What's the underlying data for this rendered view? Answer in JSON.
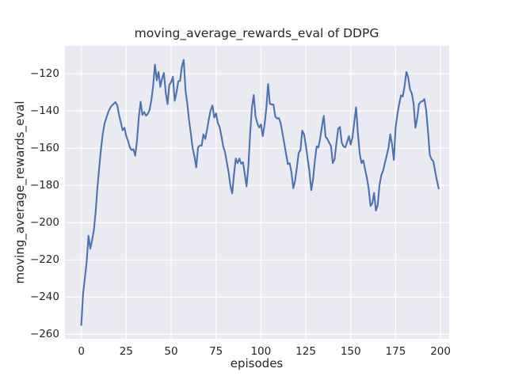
{
  "chart_data": {
    "type": "line",
    "title": "moving_average_rewards_eval of DDPG",
    "xlabel": "episodes",
    "ylabel": "moving_average_rewards_eval",
    "legend": false,
    "grid": true,
    "xlim": [
      -9.1,
      204.8
    ],
    "ylim": [
      -262.4,
      -105.0
    ],
    "x_ticks": [
      0,
      25,
      50,
      75,
      100,
      125,
      150,
      175,
      200
    ],
    "y_ticks": [
      -120,
      -140,
      -160,
      -180,
      -200,
      -220,
      -240,
      -260
    ],
    "style": {
      "fig_bg": "#ffffff",
      "axes_bg": "#eaeaf2",
      "grid_color": "#ffffff",
      "text_color": "#262626",
      "line_color": "#4c72b0",
      "line_width": 2.1
    },
    "series": [
      {
        "name": "moving_average_rewards_eval",
        "color": "#4c72b0",
        "x_start": 0,
        "x_step": 1,
        "values": [
          -255.0,
          -238.0,
          -229.5,
          -221.0,
          -207.0,
          -214.0,
          -209.5,
          -204.0,
          -194.0,
          -181.0,
          -170.0,
          -160.0,
          -152.0,
          -146.5,
          -143.5,
          -140.6,
          -138.5,
          -137.0,
          -136.2,
          -135.2,
          -136.8,
          -142.0,
          -146.0,
          -150.3,
          -149.0,
          -153.4,
          -156.0,
          -159.5,
          -161.0,
          -160.5,
          -164.0,
          -156.0,
          -143.5,
          -135.0,
          -142.0,
          -140.5,
          -142.5,
          -141.5,
          -139.5,
          -134.0,
          -126.5,
          -115.0,
          -123.5,
          -119.0,
          -127.0,
          -122.5,
          -119.5,
          -130.0,
          -136.3,
          -126.0,
          -124.5,
          -121.5,
          -134.5,
          -130.0,
          -124.0,
          -123.8,
          -116.0,
          -112.5,
          -128.5,
          -136.0,
          -145.0,
          -152.0,
          -160.0,
          -164.5,
          -170.3,
          -159.5,
          -158.5,
          -158.5,
          -152.5,
          -155.0,
          -150.0,
          -144.5,
          -139.5,
          -137.0,
          -143.5,
          -141.3,
          -146.5,
          -148.5,
          -153.5,
          -159.0,
          -162.0,
          -167.5,
          -173.0,
          -180.0,
          -184.3,
          -174.0,
          -165.5,
          -168.0,
          -165.5,
          -168.3,
          -167.5,
          -174.0,
          -180.5,
          -170.0,
          -152.0,
          -138.0,
          -131.4,
          -143.0,
          -146.5,
          -148.8,
          -147.2,
          -153.5,
          -147.5,
          -138.5,
          -125.5,
          -136.0,
          -136.5,
          -136.5,
          -143.0,
          -144.0,
          -143.8,
          -146.5,
          -152.0,
          -157.5,
          -163.0,
          -168.5,
          -168.0,
          -173.0,
          -181.5,
          -177.5,
          -170.5,
          -162.5,
          -161.0,
          -150.5,
          -152.5,
          -158.5,
          -165.5,
          -172.5,
          -182.5,
          -177.0,
          -167.0,
          -159.0,
          -159.6,
          -154.5,
          -148.0,
          -142.6,
          -153.9,
          -155.0,
          -157.0,
          -158.9,
          -168.0,
          -166.0,
          -157.5,
          -149.6,
          -148.5,
          -157.0,
          -159.0,
          -159.5,
          -156.5,
          -153.5,
          -158.0,
          -154.0,
          -145.5,
          -138.0,
          -152.0,
          -163.0,
          -168.0,
          -166.5,
          -171.5,
          -176.0,
          -181.7,
          -191.0,
          -189.5,
          -184.0,
          -193.5,
          -190.5,
          -180.0,
          -174.5,
          -172.0,
          -168.0,
          -164.0,
          -159.7,
          -152.5,
          -158.0,
          -166.3,
          -149.0,
          -141.5,
          -136.0,
          -131.5,
          -132.2,
          -126.3,
          -119.0,
          -122.0,
          -128.4,
          -130.5,
          -136.0,
          -149.0,
          -144.0,
          -136.2,
          -135.0,
          -134.7,
          -133.6,
          -139.7,
          -150.5,
          -163.5,
          -166.0,
          -167.0,
          -172.5,
          -177.5,
          -181.6
        ]
      }
    ]
  }
}
